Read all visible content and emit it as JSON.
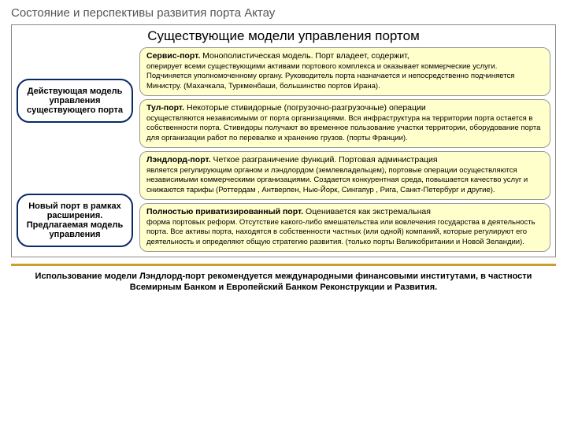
{
  "page_title": "Состояние и перспективы развития порта Актау",
  "box_title": "Существующие модели управления портом",
  "left": {
    "pill1": "Действующая модель управления существующего порта",
    "pill2": "Новый порт в рамках расширения. Предлагаемая модель управления"
  },
  "models": [
    {
      "title": "Сервис-порт.",
      "lead": " Монополистическая модель. Порт владеет, содержит,",
      "body": "оперирует всеми существующими активами портового комплекса и оказывает коммерческие услуги. Подчиняется уполномоченному органу. Руководитель порта назначается и непосредственно подчиняется Министру. (Махачкала, Туркменбаши, большинство портов Ирана)."
    },
    {
      "title": "Тул-порт.",
      "lead": " Некоторые стивидорные (погрузочно-разгрузочные) операции",
      "body": "осуществляются независимыми от порта организациями. Вся инфраструктура на территории порта остается в собственности порта. Стивидоры получают во временное пользование участки территории, оборудование порта для организации работ по перевалке и хранению грузов. (порты Франции)."
    },
    {
      "title": "Лэндлорд-порт.",
      "lead": " Четкое разграничение функций. Портовая администрация",
      "body": "является регулирующим органом и лэндлордом (землевладельцем), портовые операции осуществляются независимыми коммерческими организациями. Создается конкурентная среда, повышается качество услуг и снижаются тарифы (Роттердам , Антверпен, Нью-Йорк, Сингапур , Рига, Санкт-Петербург и другие)."
    },
    {
      "title": "Полностью приватизированный порт.",
      "lead": " Оценивается как экстремальная",
      "body": "форма портовых реформ. Отсутствие какого-либо вмешательства или вовлечения государства в деятельность порта. Все активы порта, находятся в собственности частных (или одной) компаний, которые регулируют его деятельность и определяют общую стратегию развития. (только порты Великобритании и Новой Зеландии)."
    }
  ],
  "footer": "Использование модели Лэндлорд-порт рекомендуется международными финансовыми институтами, в частности Всемирным Банком и Европейский Банком Реконструкции и Развития."
}
